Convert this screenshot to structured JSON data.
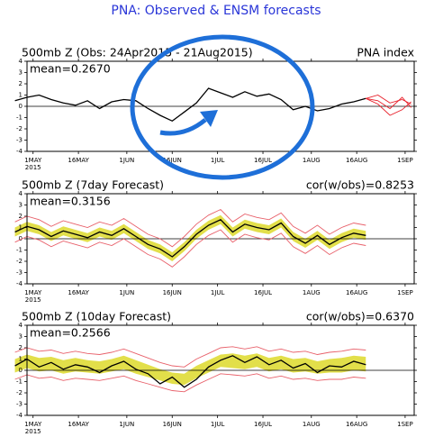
{
  "title": "PNA: Observed & ENSM forecasts",
  "chart_data": [
    {
      "type": "line",
      "label": "500mb Z (Obs: 24Apr2015 - 21Aug2015)",
      "right_label": "PNA index",
      "stats": "mean=0.2670",
      "x": [
        "2015-04-25",
        "2015-04-29",
        "2015-05-03",
        "2015-05-07",
        "2015-05-11",
        "2015-05-15",
        "2015-05-19",
        "2015-05-23",
        "2015-05-27",
        "2015-05-31",
        "2015-06-04",
        "2015-06-08",
        "2015-06-12",
        "2015-06-16",
        "2015-06-20",
        "2015-06-24",
        "2015-06-28",
        "2015-07-02",
        "2015-07-06",
        "2015-07-10",
        "2015-07-14",
        "2015-07-18",
        "2015-07-22",
        "2015-07-26",
        "2015-07-30",
        "2015-08-03",
        "2015-08-07",
        "2015-08-11",
        "2015-08-15",
        "2015-08-19",
        "2015-08-23",
        "2015-08-27",
        "2015-08-31",
        "2015-09-03"
      ],
      "xlim": [
        "2015-04-29",
        "2015-09-04"
      ],
      "xticks": [
        {
          "value": "2015-05-01",
          "label": "1MAY"
        },
        {
          "value": "2015-05-16",
          "label": "16MAY"
        },
        {
          "value": "2015-06-01",
          "label": "1JUN"
        },
        {
          "value": "2015-06-16",
          "label": "16JUN"
        },
        {
          "value": "2015-07-01",
          "label": "1JUL"
        },
        {
          "value": "2015-07-16",
          "label": "16JUL"
        },
        {
          "value": "2015-08-01",
          "label": "1AUG"
        },
        {
          "value": "2015-08-16",
          "label": "16AUG"
        },
        {
          "value": "2015-09-01",
          "label": "1SEP"
        }
      ],
      "year_label": "2015",
      "ylim": [
        -4,
        4
      ],
      "yticks": [
        -4,
        -3,
        -2,
        -1,
        0,
        1,
        2,
        3,
        4
      ],
      "series": [
        {
          "color": "#000000",
          "values": [
            0.5,
            0.8,
            1.0,
            0.6,
            0.3,
            0.1,
            0.5,
            -0.2,
            0.4,
            0.6,
            0.5,
            -0.2,
            -0.8,
            -1.3,
            -0.5,
            0.3,
            1.6,
            1.2,
            0.8,
            1.3,
            0.9,
            1.1,
            0.6,
            -0.3,
            0.0,
            -0.4,
            -0.2,
            0.2,
            0.4,
            0.7,
            null,
            null,
            null,
            null
          ]
        },
        {
          "color": "#e8202a",
          "values": [
            null,
            null,
            null,
            null,
            null,
            null,
            null,
            null,
            null,
            null,
            null,
            null,
            null,
            null,
            null,
            null,
            null,
            null,
            null,
            null,
            null,
            null,
            null,
            null,
            null,
            null,
            null,
            null,
            null,
            0.7,
            1.0,
            0.3,
            0.6,
            0.2
          ]
        },
        {
          "color": "#e8202a",
          "values": [
            null,
            null,
            null,
            null,
            null,
            null,
            null,
            null,
            null,
            null,
            null,
            null,
            null,
            null,
            null,
            null,
            null,
            null,
            null,
            null,
            null,
            null,
            null,
            null,
            null,
            null,
            null,
            null,
            null,
            0.7,
            0.2,
            -0.8,
            -0.3,
            0.4
          ]
        },
        {
          "color": "#e8202a",
          "values": [
            null,
            null,
            null,
            null,
            null,
            null,
            null,
            null,
            null,
            null,
            null,
            null,
            null,
            null,
            null,
            null,
            null,
            null,
            null,
            null,
            null,
            null,
            null,
            null,
            null,
            null,
            null,
            null,
            null,
            0.7,
            0.5,
            -0.2,
            0.8,
            -0.1
          ]
        }
      ]
    },
    {
      "type": "line",
      "label": "500mb Z (7day Forecast)",
      "right_label": "cor(w/obs)=0.8253",
      "stats": "mean=0.3156",
      "x": [
        "2015-04-25",
        "2015-04-29",
        "2015-05-03",
        "2015-05-07",
        "2015-05-11",
        "2015-05-15",
        "2015-05-19",
        "2015-05-23",
        "2015-05-27",
        "2015-05-31",
        "2015-06-04",
        "2015-06-08",
        "2015-06-12",
        "2015-06-16",
        "2015-06-20",
        "2015-06-24",
        "2015-06-28",
        "2015-07-02",
        "2015-07-06",
        "2015-07-10",
        "2015-07-14",
        "2015-07-18",
        "2015-07-22",
        "2015-07-26",
        "2015-07-30",
        "2015-08-03",
        "2015-08-07",
        "2015-08-11",
        "2015-08-15",
        "2015-08-19"
      ],
      "xlim": [
        "2015-04-29",
        "2015-09-04"
      ],
      "xticks": [
        {
          "value": "2015-05-01",
          "label": "1MAY"
        },
        {
          "value": "2015-05-16",
          "label": "16MAY"
        },
        {
          "value": "2015-06-01",
          "label": "1JUN"
        },
        {
          "value": "2015-06-16",
          "label": "16JUN"
        },
        {
          "value": "2015-07-01",
          "label": "1JUL"
        },
        {
          "value": "2015-07-16",
          "label": "16JUL"
        },
        {
          "value": "2015-08-01",
          "label": "1AUG"
        },
        {
          "value": "2015-08-16",
          "label": "16AUG"
        },
        {
          "value": "2015-09-01",
          "label": "1SEP"
        }
      ],
      "year_label": "2015",
      "ylim": [
        -4,
        4
      ],
      "yticks": [
        -4,
        -3,
        -2,
        -1,
        0,
        1,
        2,
        3,
        4
      ],
      "band": {
        "color": "#e2df4a",
        "lower": [
          0.2,
          0.7,
          0.4,
          -0.2,
          0.3,
          0.0,
          -0.3,
          0.2,
          -0.1,
          0.5,
          -0.2,
          -0.9,
          -1.3,
          -2.0,
          -1.1,
          0.0,
          0.8,
          1.3,
          0.2,
          0.9,
          0.6,
          0.4,
          1.0,
          -0.2,
          -0.8,
          -0.1,
          -0.9,
          -0.3,
          0.1,
          -0.1
        ],
        "upper": [
          1.0,
          1.5,
          1.2,
          0.6,
          1.1,
          0.8,
          0.5,
          1.0,
          0.7,
          1.3,
          0.6,
          -0.1,
          -0.5,
          -1.2,
          -0.3,
          0.8,
          1.6,
          2.1,
          1.0,
          1.7,
          1.4,
          1.2,
          1.8,
          0.6,
          0.0,
          0.7,
          -0.1,
          0.5,
          0.9,
          0.7
        ]
      },
      "series": [
        {
          "color": "#e8606a",
          "values": [
            -0.3,
            0.2,
            -0.1,
            -0.7,
            -0.2,
            -0.5,
            -0.8,
            -0.3,
            -0.6,
            0.0,
            -0.7,
            -1.4,
            -1.8,
            -2.5,
            -1.6,
            -0.5,
            0.3,
            0.8,
            -0.3,
            0.4,
            0.1,
            -0.1,
            0.5,
            -0.7,
            -1.3,
            -0.6,
            -1.4,
            -0.8,
            -0.4,
            -0.6
          ]
        },
        {
          "color": "#e8606a",
          "values": [
            1.5,
            2.0,
            1.7,
            1.1,
            1.6,
            1.3,
            1.0,
            1.5,
            1.2,
            1.8,
            1.1,
            0.4,
            0.0,
            -0.7,
            0.2,
            1.3,
            2.1,
            2.6,
            1.5,
            2.2,
            1.9,
            1.7,
            2.3,
            1.1,
            0.5,
            1.2,
            0.4,
            1.0,
            1.4,
            1.2
          ]
        },
        {
          "color": "#000000",
          "values": [
            0.6,
            1.1,
            0.8,
            0.2,
            0.7,
            0.4,
            0.1,
            0.6,
            0.3,
            0.9,
            0.2,
            -0.5,
            -0.9,
            -1.6,
            -0.7,
            0.4,
            1.2,
            1.7,
            0.6,
            1.3,
            1.0,
            0.8,
            1.4,
            0.2,
            -0.4,
            0.3,
            -0.5,
            0.1,
            0.5,
            0.3
          ]
        }
      ]
    },
    {
      "type": "line",
      "label": "500mb Z (10day Forecast)",
      "right_label": "cor(w/obs)=0.6370",
      "stats": "mean=0.2566",
      "x": [
        "2015-04-25",
        "2015-04-29",
        "2015-05-03",
        "2015-05-07",
        "2015-05-11",
        "2015-05-15",
        "2015-05-19",
        "2015-05-23",
        "2015-05-27",
        "2015-05-31",
        "2015-06-04",
        "2015-06-08",
        "2015-06-12",
        "2015-06-16",
        "2015-06-20",
        "2015-06-24",
        "2015-06-28",
        "2015-07-02",
        "2015-07-06",
        "2015-07-10",
        "2015-07-14",
        "2015-07-18",
        "2015-07-22",
        "2015-07-26",
        "2015-07-30",
        "2015-08-03",
        "2015-08-07",
        "2015-08-11",
        "2015-08-15",
        "2015-08-19"
      ],
      "xlim": [
        "2015-04-29",
        "2015-09-04"
      ],
      "xticks": [
        {
          "value": "2015-05-01",
          "label": "1MAY"
        },
        {
          "value": "2015-05-16",
          "label": "16MAY"
        },
        {
          "value": "2015-06-01",
          "label": "1JUN"
        },
        {
          "value": "2015-06-16",
          "label": "16JUN"
        },
        {
          "value": "2015-07-01",
          "label": "1JUL"
        },
        {
          "value": "2015-07-16",
          "label": "16JUL"
        },
        {
          "value": "2015-08-01",
          "label": "1AUG"
        },
        {
          "value": "2015-08-16",
          "label": "16AUG"
        },
        {
          "value": "2015-09-01",
          "label": "1SEP"
        }
      ],
      "year_label": "2015",
      "ylim": [
        -4,
        4
      ],
      "yticks": [
        -4,
        -3,
        -2,
        -1,
        0,
        1,
        2,
        3,
        4
      ],
      "band": {
        "color": "#e2df4a",
        "lower": [
          -0.2,
          0.2,
          -0.1,
          0.0,
          -0.3,
          -0.1,
          -0.2,
          -0.3,
          -0.1,
          0.1,
          -0.3,
          -0.6,
          -0.9,
          -1.2,
          -1.3,
          -0.7,
          -0.2,
          0.3,
          0.2,
          0.1,
          0.3,
          -0.1,
          0.1,
          -0.2,
          -0.1,
          -0.3,
          -0.2,
          -0.2,
          0.0,
          -0.1
        ],
        "upper": [
          1.0,
          1.4,
          1.1,
          1.2,
          0.9,
          1.1,
          0.9,
          0.8,
          1.0,
          1.3,
          0.9,
          0.5,
          0.1,
          -0.2,
          -0.3,
          0.4,
          0.9,
          1.4,
          1.5,
          1.3,
          1.5,
          1.1,
          1.3,
          1.0,
          1.1,
          0.8,
          1.0,
          1.1,
          1.3,
          1.2
        ]
      },
      "series": [
        {
          "color": "#e8606a",
          "values": [
            -0.8,
            -0.4,
            -0.7,
            -0.6,
            -0.9,
            -0.7,
            -0.8,
            -0.9,
            -0.7,
            -0.5,
            -0.9,
            -1.2,
            -1.5,
            -1.8,
            -1.9,
            -1.3,
            -0.8,
            -0.3,
            -0.4,
            -0.5,
            -0.3,
            -0.7,
            -0.5,
            -0.8,
            -0.7,
            -0.9,
            -0.8,
            -0.8,
            -0.6,
            -0.7
          ]
        },
        {
          "color": "#e8606a",
          "values": [
            1.6,
            2.0,
            1.7,
            1.8,
            1.5,
            1.7,
            1.5,
            1.4,
            1.6,
            1.9,
            1.5,
            1.1,
            0.7,
            0.4,
            0.3,
            1.0,
            1.5,
            2.0,
            2.1,
            1.9,
            2.1,
            1.7,
            1.9,
            1.6,
            1.7,
            1.4,
            1.6,
            1.7,
            1.9,
            1.8
          ]
        },
        {
          "color": "#000000",
          "values": [
            0.4,
            1.0,
            0.3,
            0.7,
            0.1,
            0.5,
            0.3,
            -0.2,
            0.4,
            0.8,
            0.1,
            -0.3,
            -1.2,
            -0.6,
            -1.5,
            -0.8,
            0.3,
            0.9,
            1.3,
            0.7,
            1.2,
            0.5,
            0.9,
            0.2,
            0.6,
            -0.2,
            0.4,
            0.3,
            0.8,
            0.5
          ]
        }
      ]
    }
  ]
}
